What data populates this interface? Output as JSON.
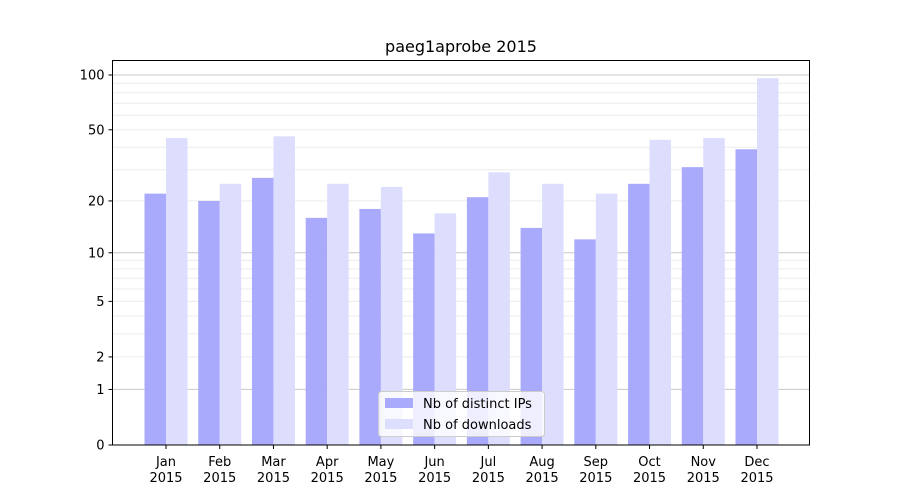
{
  "chart_data": {
    "type": "bar",
    "title": "paeg1aprobe 2015",
    "xlabel": "",
    "ylabel": "",
    "yscale": "log(1+x)",
    "ylim": [
      0,
      115
    ],
    "yticks": [
      0,
      1,
      2,
      5,
      10,
      20,
      50,
      100
    ],
    "categories": [
      "Jan\n2015",
      "Feb\n2015",
      "Mar\n2015",
      "Apr\n2015",
      "May\n2015",
      "Jun\n2015",
      "Jul\n2015",
      "Aug\n2015",
      "Sep\n2015",
      "Oct\n2015",
      "Nov\n2015",
      "Dec\n2015"
    ],
    "series": [
      {
        "name": "Nb of distinct IPs",
        "color": "#aaaafc",
        "values": [
          22,
          20,
          27,
          16,
          18,
          13,
          21,
          14,
          12,
          25,
          31,
          39
        ]
      },
      {
        "name": "Nb of downloads",
        "color": "#ddddfd",
        "values": [
          45,
          25,
          46,
          25,
          24,
          17,
          29,
          25,
          22,
          44,
          45,
          96
        ]
      }
    ],
    "grid": true,
    "legend_position": "bottom-center"
  }
}
